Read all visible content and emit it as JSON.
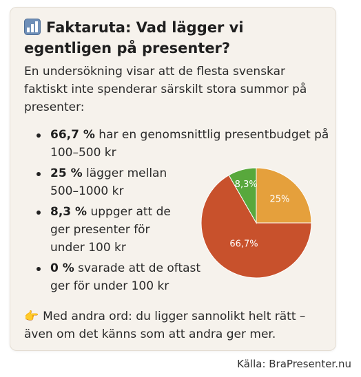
{
  "title": "Faktaruta: Vad lägger vi egentligen på presenter?",
  "title_icon": "bar-chart-icon",
  "intro": "En undersökning visar att de flesta svenskar faktiskt inte spenderar särskilt stora summor på presenter:",
  "items": [
    {
      "value": "66,7 %",
      "text": " har en genomsnittlig presentbudget på 100–500 kr"
    },
    {
      "value": "25 %",
      "text": " lägger mellan 500–1000 kr"
    },
    {
      "value": "8,3 %",
      "text": " uppger att de ger presenter för under 100 kr"
    },
    {
      "value": "0 %",
      "text": " svarade att de oftast ger för under 100 kr"
    }
  ],
  "footer_icon": "pointing-hand-icon",
  "footer": "Med andra ord: du ligger sannolikt helt rätt – även om det känns som att andra ger mer.",
  "source": "Källa: BraPresenter.nu",
  "colors": {
    "card_background": "#f6f2ec",
    "slice_66": "#c8512c",
    "slice_25": "#e5a03c",
    "slice_8": "#58a83c"
  },
  "chart_data": {
    "type": "pie",
    "slices": [
      {
        "label": "66,7%",
        "value": 66.7,
        "color": "#c8512c"
      },
      {
        "label": "8,3%",
        "value": 8.3,
        "color": "#58a83c"
      },
      {
        "label": "25%",
        "value": 25,
        "color": "#e5a03c"
      }
    ]
  }
}
